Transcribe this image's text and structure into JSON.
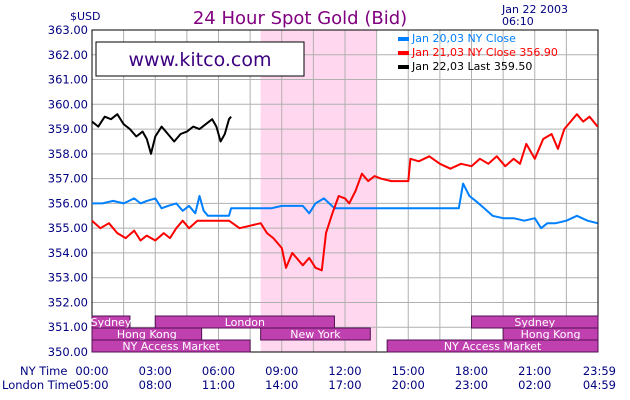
{
  "chart_data": {
    "type": "line",
    "title": "24 Hour Spot Gold (Bid)",
    "ylabel": "$USD",
    "date_line1": "Jan 22 2003",
    "date_line2": "06:10",
    "watermark": "www.kitco.com",
    "ylim": [
      350.0,
      363.0
    ],
    "y_ticks": [
      "363.00",
      "362.00",
      "361.00",
      "360.00",
      "359.00",
      "358.00",
      "357.00",
      "356.00",
      "355.00",
      "354.00",
      "353.00",
      "352.00",
      "351.00",
      "350.00"
    ],
    "x_row_ny_label": "NY Time",
    "x_row_london_label": "London Time",
    "x_ticks_ny": [
      "00:00",
      "03:00",
      "06:00",
      "09:00",
      "12:00",
      "15:00",
      "18:00",
      "21:00",
      "23:59"
    ],
    "x_ticks_london": [
      "05:00",
      "08:00",
      "11:00",
      "14:00",
      "17:00",
      "20:00",
      "23:00",
      "02:00",
      "04:59"
    ],
    "grid": true,
    "highlight_band_hours": [
      8.0,
      13.5
    ],
    "legend_position": "top-right",
    "legend": [
      {
        "label": "Jan 20,03  NY Close",
        "color": "#0080ff"
      },
      {
        "label": "Jan 21,03  NY Close  356.90",
        "color": "#ff0000"
      },
      {
        "label": "Jan 22,03  Last  359.50",
        "color": "#000000"
      }
    ],
    "sessions": [
      {
        "label": "Sydney",
        "start": 0.0,
        "end": 1.8,
        "row": 0
      },
      {
        "label": "London",
        "start": 3.0,
        "end": 11.5,
        "row": 0
      },
      {
        "label": "Sydney",
        "start": 18.0,
        "end": 24.0,
        "row": 0
      },
      {
        "label": "Hong Kong",
        "start": 0.0,
        "end": 5.2,
        "row": 1
      },
      {
        "label": "New York",
        "start": 8.0,
        "end": 13.2,
        "row": 1
      },
      {
        "label": "Hong Kong",
        "start": 19.5,
        "end": 24.0,
        "row": 1
      },
      {
        "label": "NY Access Market",
        "start": 0.0,
        "end": 7.5,
        "row": 2
      },
      {
        "label": "NY Access Market",
        "start": 14.0,
        "end": 24.0,
        "row": 2
      }
    ],
    "series": [
      {
        "color": "#0080ff",
        "points": [
          [
            0,
            356.0
          ],
          [
            0.5,
            356.0
          ],
          [
            1,
            356.1
          ],
          [
            1.5,
            356.0
          ],
          [
            2,
            356.2
          ],
          [
            2.3,
            356.0
          ],
          [
            2.6,
            356.1
          ],
          [
            3,
            356.2
          ],
          [
            3.3,
            355.8
          ],
          [
            3.6,
            355.9
          ],
          [
            4,
            356.0
          ],
          [
            4.3,
            355.7
          ],
          [
            4.6,
            355.9
          ],
          [
            4.9,
            355.6
          ],
          [
            5.1,
            356.3
          ],
          [
            5.3,
            355.7
          ],
          [
            5.5,
            355.5
          ],
          [
            6,
            355.5
          ],
          [
            6.5,
            355.5
          ],
          [
            6.6,
            355.8
          ],
          [
            7,
            355.8
          ],
          [
            7.5,
            355.8
          ],
          [
            8,
            355.8
          ],
          [
            8.5,
            355.8
          ],
          [
            9,
            355.9
          ],
          [
            9.5,
            355.9
          ],
          [
            10,
            355.9
          ],
          [
            10.3,
            355.6
          ],
          [
            10.6,
            356.0
          ],
          [
            11,
            356.2
          ],
          [
            11.5,
            355.8
          ],
          [
            12,
            355.8
          ],
          [
            13,
            355.8
          ],
          [
            14,
            355.8
          ],
          [
            15,
            355.8
          ],
          [
            16,
            355.8
          ],
          [
            17,
            355.8
          ],
          [
            17.4,
            355.8
          ],
          [
            17.6,
            356.8
          ],
          [
            17.9,
            356.3
          ],
          [
            18.2,
            356.1
          ],
          [
            18.6,
            355.8
          ],
          [
            19,
            355.5
          ],
          [
            19.5,
            355.4
          ],
          [
            20,
            355.4
          ],
          [
            20.5,
            355.3
          ],
          [
            21,
            355.4
          ],
          [
            21.3,
            355.0
          ],
          [
            21.6,
            355.2
          ],
          [
            22,
            355.2
          ],
          [
            22.5,
            355.3
          ],
          [
            23,
            355.5
          ],
          [
            23.5,
            355.3
          ],
          [
            23.98,
            355.2
          ]
        ]
      },
      {
        "color": "#ff0000",
        "points": [
          [
            0,
            355.3
          ],
          [
            0.4,
            355.0
          ],
          [
            0.8,
            355.2
          ],
          [
            1.2,
            354.8
          ],
          [
            1.6,
            354.6
          ],
          [
            2,
            354.9
          ],
          [
            2.3,
            354.5
          ],
          [
            2.6,
            354.7
          ],
          [
            3,
            354.5
          ],
          [
            3.4,
            354.8
          ],
          [
            3.7,
            354.6
          ],
          [
            4,
            355.0
          ],
          [
            4.3,
            355.3
          ],
          [
            4.6,
            355.0
          ],
          [
            5,
            355.3
          ],
          [
            5.5,
            355.3
          ],
          [
            6,
            355.3
          ],
          [
            6.5,
            355.3
          ],
          [
            7,
            355.0
          ],
          [
            7.5,
            355.1
          ],
          [
            8,
            355.2
          ],
          [
            8.3,
            354.8
          ],
          [
            8.6,
            354.6
          ],
          [
            9,
            354.2
          ],
          [
            9.2,
            353.4
          ],
          [
            9.5,
            354.0
          ],
          [
            9.8,
            353.7
          ],
          [
            10,
            353.5
          ],
          [
            10.3,
            353.8
          ],
          [
            10.6,
            353.4
          ],
          [
            10.9,
            353.3
          ],
          [
            11.1,
            354.8
          ],
          [
            11.4,
            355.6
          ],
          [
            11.7,
            356.3
          ],
          [
            12,
            356.2
          ],
          [
            12.2,
            356.0
          ],
          [
            12.5,
            356.5
          ],
          [
            12.8,
            357.2
          ],
          [
            13.1,
            356.9
          ],
          [
            13.4,
            357.1
          ],
          [
            13.7,
            357.0
          ],
          [
            14.2,
            356.9
          ],
          [
            15,
            356.9
          ],
          [
            15.1,
            357.8
          ],
          [
            15.5,
            357.7
          ],
          [
            16,
            357.9
          ],
          [
            16.5,
            357.6
          ],
          [
            17,
            357.4
          ],
          [
            17.5,
            357.6
          ],
          [
            18,
            357.5
          ],
          [
            18.4,
            357.8
          ],
          [
            18.8,
            357.6
          ],
          [
            19.2,
            357.9
          ],
          [
            19.6,
            357.5
          ],
          [
            20,
            357.8
          ],
          [
            20.3,
            357.6
          ],
          [
            20.6,
            358.4
          ],
          [
            21,
            357.8
          ],
          [
            21.4,
            358.6
          ],
          [
            21.8,
            358.8
          ],
          [
            22.1,
            358.2
          ],
          [
            22.4,
            359.0
          ],
          [
            22.7,
            359.3
          ],
          [
            23,
            359.6
          ],
          [
            23.3,
            359.3
          ],
          [
            23.6,
            359.5
          ],
          [
            23.98,
            359.1
          ]
        ]
      },
      {
        "color": "#000000",
        "points": [
          [
            0,
            359.3
          ],
          [
            0.3,
            359.1
          ],
          [
            0.6,
            359.5
          ],
          [
            0.9,
            359.4
          ],
          [
            1.2,
            359.6
          ],
          [
            1.5,
            359.2
          ],
          [
            1.8,
            359.0
          ],
          [
            2.1,
            358.7
          ],
          [
            2.4,
            358.9
          ],
          [
            2.6,
            358.6
          ],
          [
            2.8,
            358.0
          ],
          [
            3,
            358.7
          ],
          [
            3.3,
            359.1
          ],
          [
            3.6,
            358.8
          ],
          [
            3.9,
            358.5
          ],
          [
            4.2,
            358.8
          ],
          [
            4.5,
            358.9
          ],
          [
            4.8,
            359.1
          ],
          [
            5.1,
            359.0
          ],
          [
            5.4,
            359.2
          ],
          [
            5.7,
            359.4
          ],
          [
            5.9,
            359.1
          ],
          [
            6.1,
            358.5
          ],
          [
            6.3,
            358.8
          ],
          [
            6.5,
            359.4
          ],
          [
            6.6,
            359.5
          ]
        ]
      }
    ]
  }
}
